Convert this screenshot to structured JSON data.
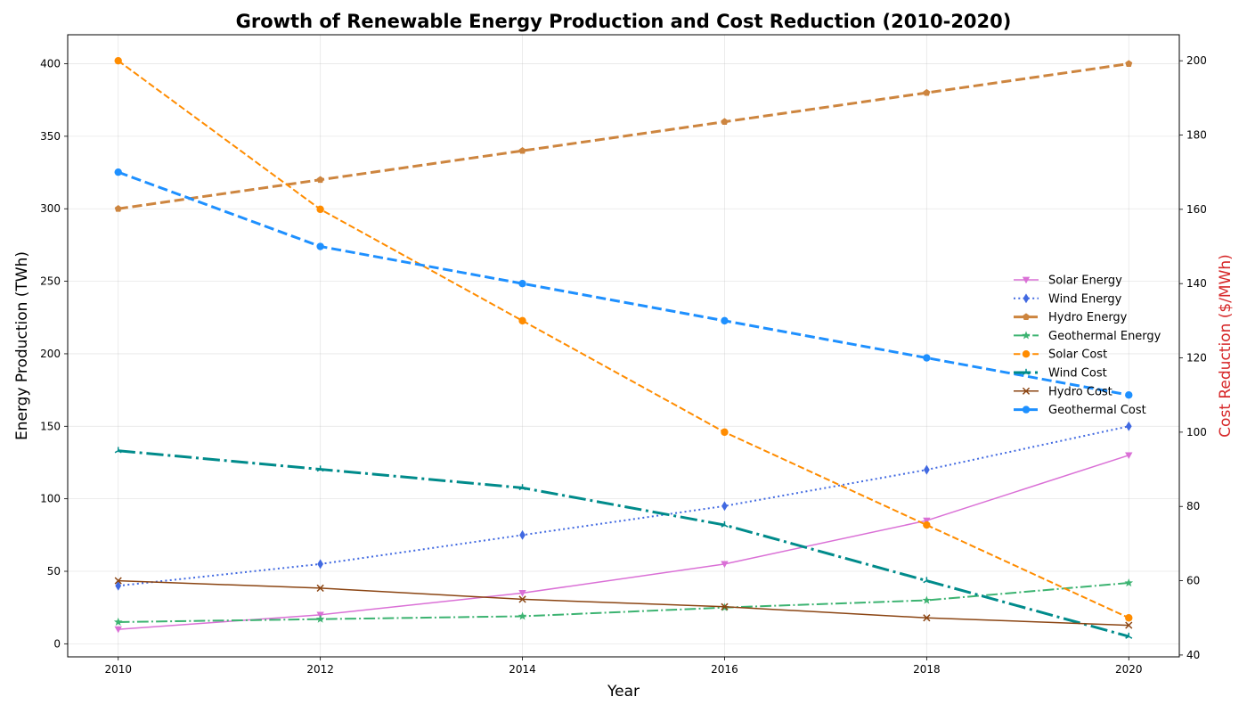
{
  "chart_data": {
    "type": "line",
    "title": "Growth of Renewable Energy Production and Cost Reduction (2010-2020)",
    "xlabel": "Year",
    "ylabel_left": "Energy Production (TWh)",
    "ylabel_right": "Cost Reduction ($/MWh)",
    "x": [
      2010,
      2012,
      2014,
      2016,
      2018,
      2020
    ],
    "xlim": [
      2009.5,
      2020.5
    ],
    "ylim_left": [
      -9,
      420
    ],
    "ylim_right": [
      39.5,
      207
    ],
    "xticks": [
      "2010",
      "2012",
      "2014",
      "2016",
      "2018",
      "2020"
    ],
    "yticks_left": [
      "0",
      "50",
      "100",
      "150",
      "200",
      "250",
      "300",
      "350",
      "400"
    ],
    "yticks_right": [
      "40",
      "60",
      "80",
      "100",
      "120",
      "140",
      "160",
      "180",
      "200"
    ],
    "grid": true,
    "legend_position": "center-right",
    "colors": {
      "right_axis_label": "#d62728"
    },
    "series": [
      {
        "name": "Solar Energy",
        "axis": "left",
        "values": [
          10,
          20,
          35,
          55,
          85,
          130
        ],
        "color": "#da70d6",
        "line_style": "solid",
        "line_width": 1.5,
        "marker": "triangle-down"
      },
      {
        "name": "Wind Energy",
        "axis": "left",
        "values": [
          40,
          55,
          75,
          95,
          120,
          150
        ],
        "color": "#4169e1",
        "line_style": "dotted",
        "line_width": 2,
        "marker": "diamond"
      },
      {
        "name": "Hydro Energy",
        "axis": "left",
        "values": [
          300,
          320,
          340,
          360,
          380,
          400
        ],
        "color": "#cd853f",
        "line_style": "dashed",
        "line_width": 3,
        "marker": "pentagon"
      },
      {
        "name": "Geothermal Energy",
        "axis": "left",
        "values": [
          15,
          17,
          19,
          25,
          30,
          42
        ],
        "color": "#3cb371",
        "line_style": "dashdot",
        "line_width": 2,
        "marker": "star"
      },
      {
        "name": "Solar Cost",
        "axis": "right",
        "values": [
          200,
          160,
          130,
          100,
          75,
          50
        ],
        "color": "#ff8c00",
        "line_style": "dashed",
        "line_width": 2,
        "marker": "circle"
      },
      {
        "name": "Wind Cost",
        "axis": "right",
        "values": [
          95,
          90,
          85,
          75,
          60,
          45
        ],
        "color": "#008b8b",
        "line_style": "dashdot",
        "line_width": 3,
        "marker": "tri"
      },
      {
        "name": "Hydro Cost",
        "axis": "right",
        "values": [
          60,
          58,
          55,
          53,
          50,
          48
        ],
        "color": "#8b4513",
        "line_style": "solid",
        "line_width": 1.5,
        "marker": "x"
      },
      {
        "name": "Geothermal Cost",
        "axis": "right",
        "values": [
          170,
          150,
          140,
          130,
          120,
          110
        ],
        "color": "#1e90ff",
        "line_style": "dashed",
        "line_width": 3,
        "marker": "circle"
      }
    ]
  }
}
